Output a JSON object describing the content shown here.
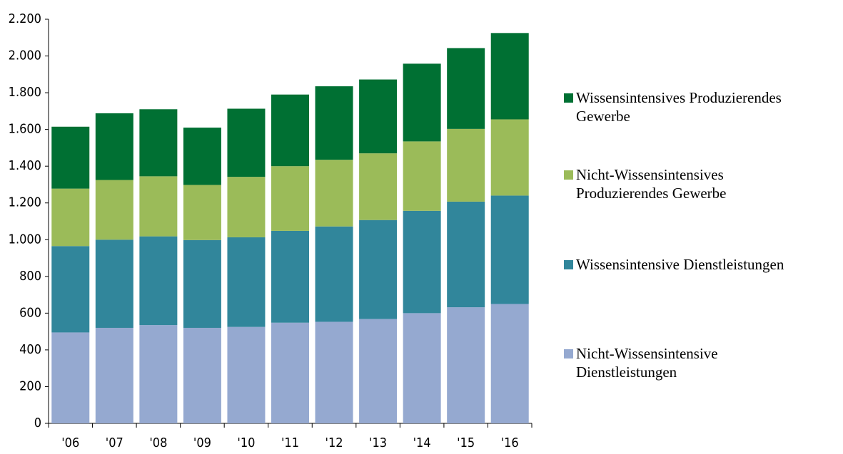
{
  "chart_data": {
    "type": "stacked-bar",
    "categories": [
      "'06",
      "'07",
      "'08",
      "'09",
      "'10",
      "'11",
      "'12",
      "'13",
      "'14",
      "'15",
      "'16"
    ],
    "series": [
      {
        "name": "Nicht-Wissensintensive Dienstleistungen",
        "color": "#95a9d0",
        "values": [
          495,
          520,
          535,
          520,
          525,
          548,
          553,
          568,
          600,
          632,
          650
        ]
      },
      {
        "name": "Wissensintensive Dienstleistungen",
        "color": "#31869b",
        "values": [
          470,
          480,
          483,
          478,
          488,
          500,
          519,
          539,
          557,
          575,
          590
        ]
      },
      {
        "name": "Nicht-Wissensintensives Produzierendes Gewerbe",
        "color": "#9bbb59",
        "values": [
          313,
          325,
          327,
          300,
          329,
          352,
          363,
          363,
          378,
          396,
          415
        ]
      },
      {
        "name": "Wissensintensives Produzierendes Gewerbe",
        "color": "#007033",
        "values": [
          337,
          363,
          365,
          312,
          371,
          390,
          400,
          402,
          423,
          440,
          470
        ]
      }
    ],
    "ylim": [
      0,
      2200
    ],
    "yticks": [
      0,
      200,
      400,
      600,
      800,
      {
        "value": 1000,
        "label": "1.000"
      },
      {
        "value": 1200,
        "label": "1.200"
      },
      {
        "value": 1400,
        "label": "1.400"
      },
      {
        "value": 1600,
        "label": "1.600"
      },
      {
        "value": 1800,
        "label": "1.800"
      },
      {
        "value": 2000,
        "label": "2.000"
      },
      {
        "value": 2200,
        "label": "2.200"
      }
    ],
    "legend": "right"
  }
}
